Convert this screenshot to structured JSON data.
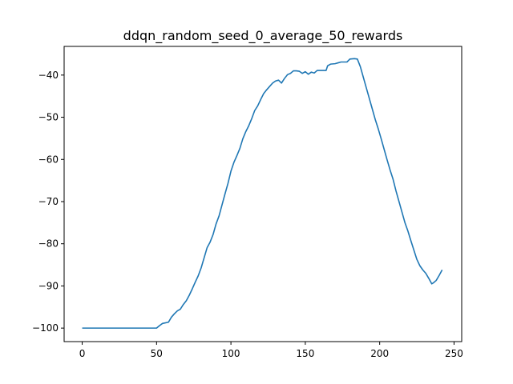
{
  "chart_data": {
    "type": "line",
    "title": "ddqn_random_seed_0_average_50_rewards",
    "xlabel": "",
    "ylabel": "",
    "xlim": [
      -12.15,
      255.15
    ],
    "ylim": [
      -103.2,
      -33.2
    ],
    "xticks": [
      0,
      50,
      100,
      150,
      200,
      250
    ],
    "yticks": [
      -100,
      -90,
      -80,
      -70,
      -60,
      -50,
      -40
    ],
    "xtick_labels": [
      "0",
      "50",
      "100",
      "150",
      "200",
      "250"
    ],
    "ytick_labels": [
      "−100",
      "−90",
      "−80",
      "−70",
      "−60",
      "−50",
      "−40"
    ],
    "grid": false,
    "legend": "none",
    "series": [
      {
        "color": "#1f77b4",
        "points": [
          [
            0,
            -100
          ],
          [
            10,
            -100
          ],
          [
            20,
            -100
          ],
          [
            30,
            -100
          ],
          [
            40,
            -100
          ],
          [
            50,
            -100
          ],
          [
            52,
            -99.4
          ],
          [
            54,
            -98.9
          ],
          [
            58,
            -98.6
          ],
          [
            60,
            -97.4
          ],
          [
            62,
            -96.6
          ],
          [
            64,
            -95.9
          ],
          [
            66,
            -95.5
          ],
          [
            68,
            -94.4
          ],
          [
            70,
            -93.5
          ],
          [
            72,
            -92.2
          ],
          [
            74,
            -90.7
          ],
          [
            76,
            -89.1
          ],
          [
            78,
            -87.6
          ],
          [
            80,
            -85.7
          ],
          [
            82,
            -83.3
          ],
          [
            84,
            -80.9
          ],
          [
            86,
            -79.6
          ],
          [
            88,
            -77.8
          ],
          [
            90,
            -75.3
          ],
          [
            92,
            -73.4
          ],
          [
            94,
            -70.8
          ],
          [
            96,
            -68.2
          ],
          [
            98,
            -65.7
          ],
          [
            100,
            -62.8
          ],
          [
            102,
            -60.7
          ],
          [
            104,
            -59.1
          ],
          [
            106,
            -57.4
          ],
          [
            108,
            -55.1
          ],
          [
            110,
            -53.4
          ],
          [
            112,
            -52.0
          ],
          [
            114,
            -50.3
          ],
          [
            116,
            -48.4
          ],
          [
            118,
            -47.3
          ],
          [
            120,
            -45.8
          ],
          [
            122,
            -44.4
          ],
          [
            124,
            -43.5
          ],
          [
            126,
            -42.7
          ],
          [
            128,
            -41.9
          ],
          [
            130,
            -41.4
          ],
          [
            132,
            -41.2
          ],
          [
            134,
            -41.9
          ],
          [
            136,
            -40.8
          ],
          [
            138,
            -39.9
          ],
          [
            140,
            -39.6
          ],
          [
            142,
            -39.0
          ],
          [
            144,
            -39.0
          ],
          [
            146,
            -39.1
          ],
          [
            148,
            -39.6
          ],
          [
            150,
            -39.2
          ],
          [
            152,
            -39.8
          ],
          [
            154,
            -39.3
          ],
          [
            156,
            -39.5
          ],
          [
            158,
            -38.9
          ],
          [
            160,
            -38.9
          ],
          [
            162,
            -38.9
          ],
          [
            164,
            -38.9
          ],
          [
            165,
            -37.8
          ],
          [
            167,
            -37.4
          ],
          [
            170,
            -37.3
          ],
          [
            172,
            -37.1
          ],
          [
            174,
            -36.9
          ],
          [
            176,
            -36.9
          ],
          [
            178,
            -36.9
          ],
          [
            180,
            -36.2
          ],
          [
            183,
            -36.1
          ],
          [
            185,
            -36.2
          ],
          [
            187,
            -38.0
          ],
          [
            189,
            -40.5
          ],
          [
            191,
            -43.0
          ],
          [
            193,
            -45.5
          ],
          [
            195,
            -48.0
          ],
          [
            197,
            -50.5
          ],
          [
            199,
            -52.7
          ],
          [
            201,
            -55.1
          ],
          [
            203,
            -57.6
          ],
          [
            205,
            -60.1
          ],
          [
            207,
            -62.5
          ],
          [
            209,
            -64.7
          ],
          [
            211,
            -67.5
          ],
          [
            213,
            -70.0
          ],
          [
            215,
            -72.5
          ],
          [
            217,
            -75.0
          ],
          [
            219,
            -77.0
          ],
          [
            221,
            -79.3
          ],
          [
            223,
            -81.5
          ],
          [
            225,
            -83.7
          ],
          [
            227,
            -85.2
          ],
          [
            229,
            -86.2
          ],
          [
            231,
            -87.0
          ],
          [
            233,
            -88.2
          ],
          [
            235,
            -89.5
          ],
          [
            236,
            -89.3
          ],
          [
            238,
            -88.7
          ],
          [
            240,
            -87.5
          ],
          [
            242,
            -86.2
          ]
        ]
      }
    ]
  }
}
